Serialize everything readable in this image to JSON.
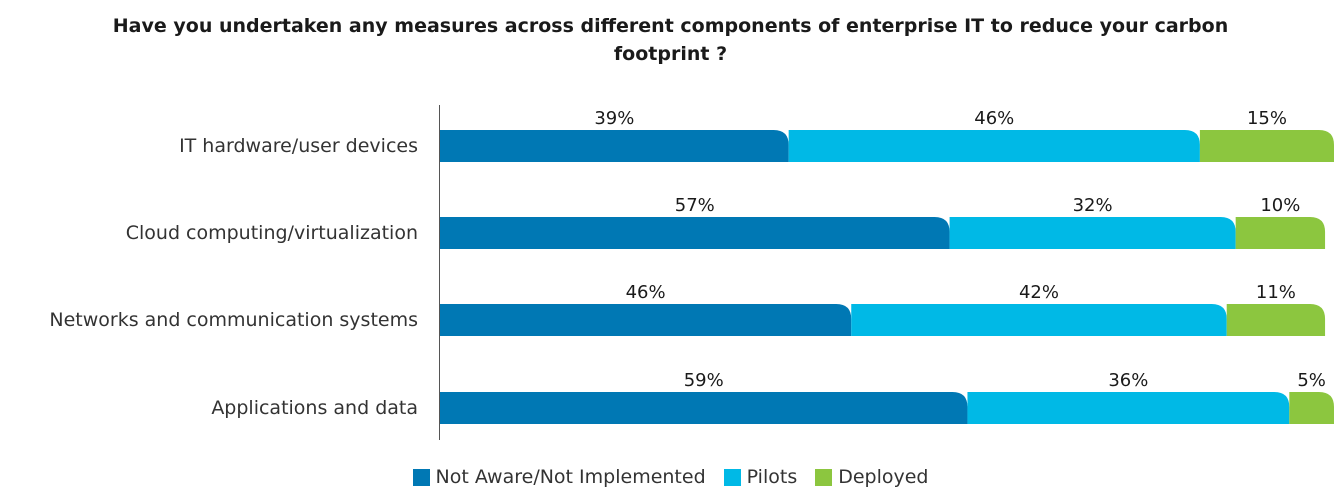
{
  "chart_data": {
    "type": "bar",
    "orientation": "horizontal",
    "stacked": true,
    "title": "Have you undertaken any measures across different components of enterprise IT to reduce your carbon footprint ?",
    "categories": [
      "IT hardware/user devices",
      "Cloud computing/virtualization",
      "Networks and communication systems",
      "Applications and data"
    ],
    "series": [
      {
        "name": "Not Aware/Not Implemented",
        "color": "#0078b4",
        "values": [
          39,
          57,
          46,
          59
        ],
        "labels": [
          "39%",
          "57%",
          "46%",
          "59%"
        ]
      },
      {
        "name": "Pilots",
        "color": "#00b9e6",
        "values": [
          46,
          32,
          42,
          36
        ],
        "labels": [
          "46%",
          "32%",
          "42%",
          "36%"
        ]
      },
      {
        "name": "Deployed",
        "color": "#8cc63f",
        "values": [
          15,
          10,
          11,
          5
        ],
        "labels": [
          "15%",
          "10%",
          "11%",
          "5%"
        ]
      }
    ],
    "xlim": [
      0,
      100
    ],
    "grid": false,
    "legend_position": "bottom"
  }
}
